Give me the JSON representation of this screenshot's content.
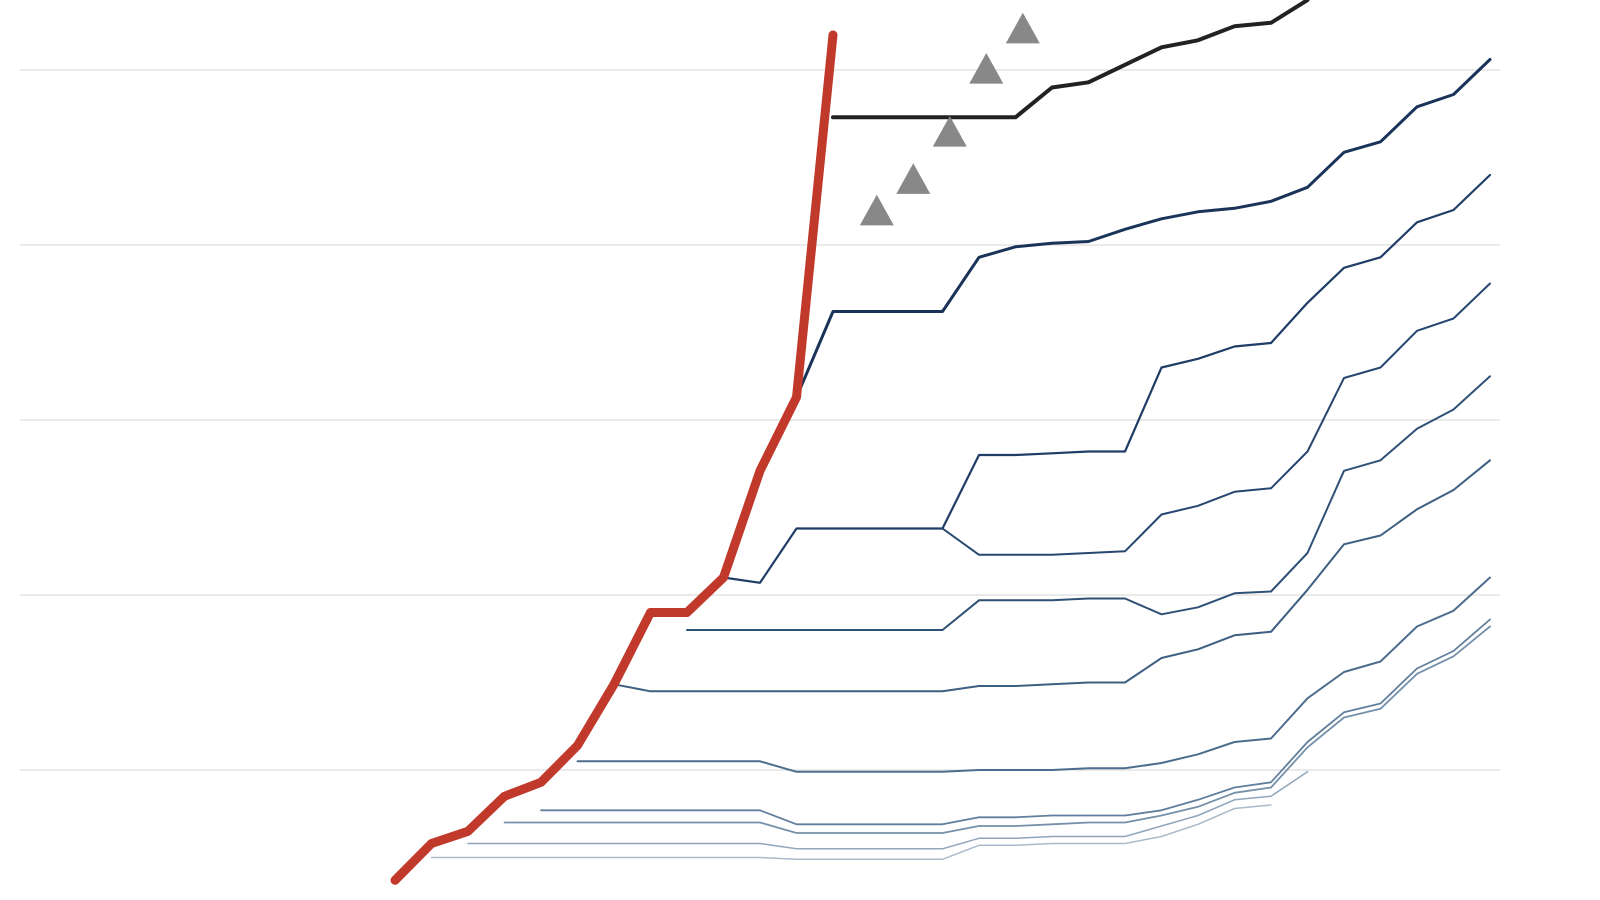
{
  "chart_data": {
    "type": "line",
    "xlim": [
      0,
      41
    ],
    "ylim": [
      0.35,
      5.4
    ],
    "yticks": [
      1,
      2,
      3,
      4,
      5
    ],
    "grid": true,
    "series": [
      {
        "color": "#aabacb",
        "width": 1.5,
        "x": [
          11,
          12,
          13,
          14,
          15,
          16,
          17,
          18,
          19,
          20,
          21,
          22,
          23,
          24,
          25,
          26,
          27,
          28,
          29,
          30,
          31,
          32,
          33,
          34
        ],
        "values": [
          0.5,
          0.5,
          0.5,
          0.5,
          0.5,
          0.5,
          0.5,
          0.5,
          0.5,
          0.5,
          0.49,
          0.49,
          0.49,
          0.49,
          0.49,
          0.57,
          0.57,
          0.58,
          0.58,
          0.58,
          0.62,
          0.69,
          0.78,
          0.8
        ]
      },
      {
        "color": "#90a6bb",
        "width": 1.5,
        "x": [
          12,
          13,
          14,
          15,
          16,
          17,
          18,
          19,
          20,
          21,
          22,
          23,
          24,
          25,
          26,
          27,
          28,
          29,
          30,
          31,
          32,
          33,
          34,
          35
        ],
        "values": [
          0.58,
          0.58,
          0.58,
          0.58,
          0.58,
          0.58,
          0.58,
          0.58,
          0.58,
          0.55,
          0.55,
          0.55,
          0.55,
          0.55,
          0.61,
          0.61,
          0.62,
          0.62,
          0.62,
          0.68,
          0.74,
          0.83,
          0.85,
          0.99
        ]
      },
      {
        "color": "#7590aa",
        "width": 1.8,
        "x": [
          13,
          14,
          15,
          16,
          17,
          18,
          19,
          20,
          21,
          22,
          23,
          24,
          25,
          26,
          27,
          28,
          29,
          30,
          31,
          32,
          33,
          34,
          35,
          36,
          37,
          38,
          39,
          40
        ],
        "values": [
          0.7,
          0.7,
          0.7,
          0.7,
          0.7,
          0.7,
          0.7,
          0.7,
          0.64,
          0.64,
          0.64,
          0.64,
          0.64,
          0.68,
          0.68,
          0.69,
          0.7,
          0.7,
          0.74,
          0.79,
          0.87,
          0.9,
          1.13,
          1.3,
          1.35,
          1.55,
          1.65,
          1.82
        ]
      },
      {
        "color": "#607f9c",
        "width": 1.8,
        "x": [
          14,
          15,
          16,
          17,
          18,
          19,
          20,
          21,
          22,
          23,
          24,
          25,
          26,
          27,
          28,
          29,
          30,
          31,
          32,
          33,
          34,
          35,
          36,
          37,
          38,
          39,
          40
        ],
        "values": [
          0.77,
          0.77,
          0.77,
          0.77,
          0.77,
          0.77,
          0.77,
          0.69,
          0.69,
          0.69,
          0.69,
          0.69,
          0.73,
          0.73,
          0.74,
          0.74,
          0.74,
          0.77,
          0.83,
          0.9,
          0.93,
          1.16,
          1.33,
          1.38,
          1.58,
          1.68,
          1.86
        ]
      },
      {
        "color": "#4d6d8d",
        "width": 2,
        "x": [
          15,
          16,
          17,
          18,
          19,
          20,
          21,
          22,
          23,
          24,
          25,
          26,
          27,
          28,
          29,
          30,
          31,
          32,
          33,
          34,
          35,
          36,
          37,
          38,
          39,
          40
        ],
        "values": [
          1.05,
          1.05,
          1.05,
          1.05,
          1.05,
          1.05,
          0.99,
          0.99,
          0.99,
          0.99,
          0.99,
          1.0,
          1.0,
          1.0,
          1.01,
          1.01,
          1.04,
          1.09,
          1.16,
          1.18,
          1.41,
          1.56,
          1.62,
          1.82,
          1.91,
          2.1
        ]
      },
      {
        "color": "#3d5f82",
        "width": 2,
        "x": [
          16,
          17,
          18,
          19,
          20,
          21,
          22,
          23,
          24,
          25,
          26,
          27,
          28,
          29,
          30,
          31,
          32,
          33,
          34,
          35,
          36,
          37,
          38,
          39,
          40
        ],
        "values": [
          1.49,
          1.45,
          1.45,
          1.45,
          1.45,
          1.45,
          1.45,
          1.45,
          1.45,
          1.45,
          1.48,
          1.48,
          1.49,
          1.5,
          1.5,
          1.64,
          1.69,
          1.77,
          1.79,
          2.03,
          2.29,
          2.34,
          2.49,
          2.6,
          2.77
        ]
      },
      {
        "color": "#2f5176",
        "width": 2,
        "x": [
          18,
          19,
          20,
          21,
          22,
          23,
          24,
          25,
          26,
          27,
          28,
          29,
          30,
          31,
          32,
          33,
          34,
          35,
          36,
          37,
          38,
          39,
          40
        ],
        "values": [
          1.8,
          1.8,
          1.8,
          1.8,
          1.8,
          1.8,
          1.8,
          1.8,
          1.97,
          1.97,
          1.97,
          1.98,
          1.98,
          1.89,
          1.93,
          2.01,
          2.02,
          2.24,
          2.71,
          2.77,
          2.95,
          3.06,
          3.25
        ]
      },
      {
        "color": "#27476f",
        "width": 2,
        "x": [
          25,
          26,
          27,
          28,
          29,
          30,
          31,
          32,
          33,
          34,
          35,
          36,
          37,
          38,
          39,
          40
        ],
        "values": [
          2.38,
          2.23,
          2.23,
          2.23,
          2.24,
          2.25,
          2.46,
          2.51,
          2.59,
          2.61,
          2.82,
          3.24,
          3.3,
          3.51,
          3.58,
          3.78
        ]
      },
      {
        "color": "#1f3d66",
        "width": 2.2,
        "x": [
          19,
          20,
          21,
          22,
          23,
          24,
          25,
          26,
          27,
          28,
          29,
          30,
          31,
          32,
          33,
          34,
          35,
          36,
          37,
          38,
          39,
          40
        ],
        "values": [
          2.1,
          2.07,
          2.38,
          2.38,
          2.38,
          2.38,
          2.38,
          2.8,
          2.8,
          2.81,
          2.82,
          2.82,
          3.3,
          3.35,
          3.42,
          3.44,
          3.67,
          3.87,
          3.93,
          4.13,
          4.2,
          4.4
        ]
      },
      {
        "color": "#1a3358",
        "width": 3,
        "x": [
          21,
          22,
          23,
          24,
          25,
          26,
          27,
          28,
          29,
          30,
          31,
          32,
          33,
          34,
          35,
          36,
          37,
          38,
          39,
          40
        ],
        "values": [
          3.13,
          3.62,
          3.62,
          3.62,
          3.62,
          3.93,
          3.99,
          4.01,
          4.02,
          4.09,
          4.15,
          4.19,
          4.21,
          4.25,
          4.33,
          4.53,
          4.59,
          4.79,
          4.86,
          5.06
        ]
      },
      {
        "color": "#222222",
        "width": 4,
        "x": [
          22,
          23,
          24,
          25,
          26,
          27,
          28,
          29,
          30,
          31,
          32,
          33,
          34,
          35
        ],
        "values": [
          4.73,
          4.73,
          4.73,
          4.73,
          4.73,
          4.73,
          4.9,
          4.93,
          5.03,
          5.13,
          5.17,
          5.25,
          5.27,
          5.4
        ]
      },
      {
        "color": "#c0392b",
        "width": 9,
        "x": [
          10,
          11,
          12,
          13,
          14,
          15,
          16,
          17,
          18,
          19,
          20,
          21,
          22
        ],
        "values": [
          0.37,
          0.58,
          0.65,
          0.85,
          0.93,
          1.14,
          1.49,
          1.9,
          1.9,
          2.1,
          2.71,
          3.13,
          5.2
        ]
      }
    ],
    "markers": {
      "color": "#888888",
      "x": [
        23.2,
        24.2,
        25.2,
        26.2,
        27.2
      ],
      "values": [
        4.19,
        4.37,
        4.64,
        5.0,
        5.23
      ]
    }
  }
}
